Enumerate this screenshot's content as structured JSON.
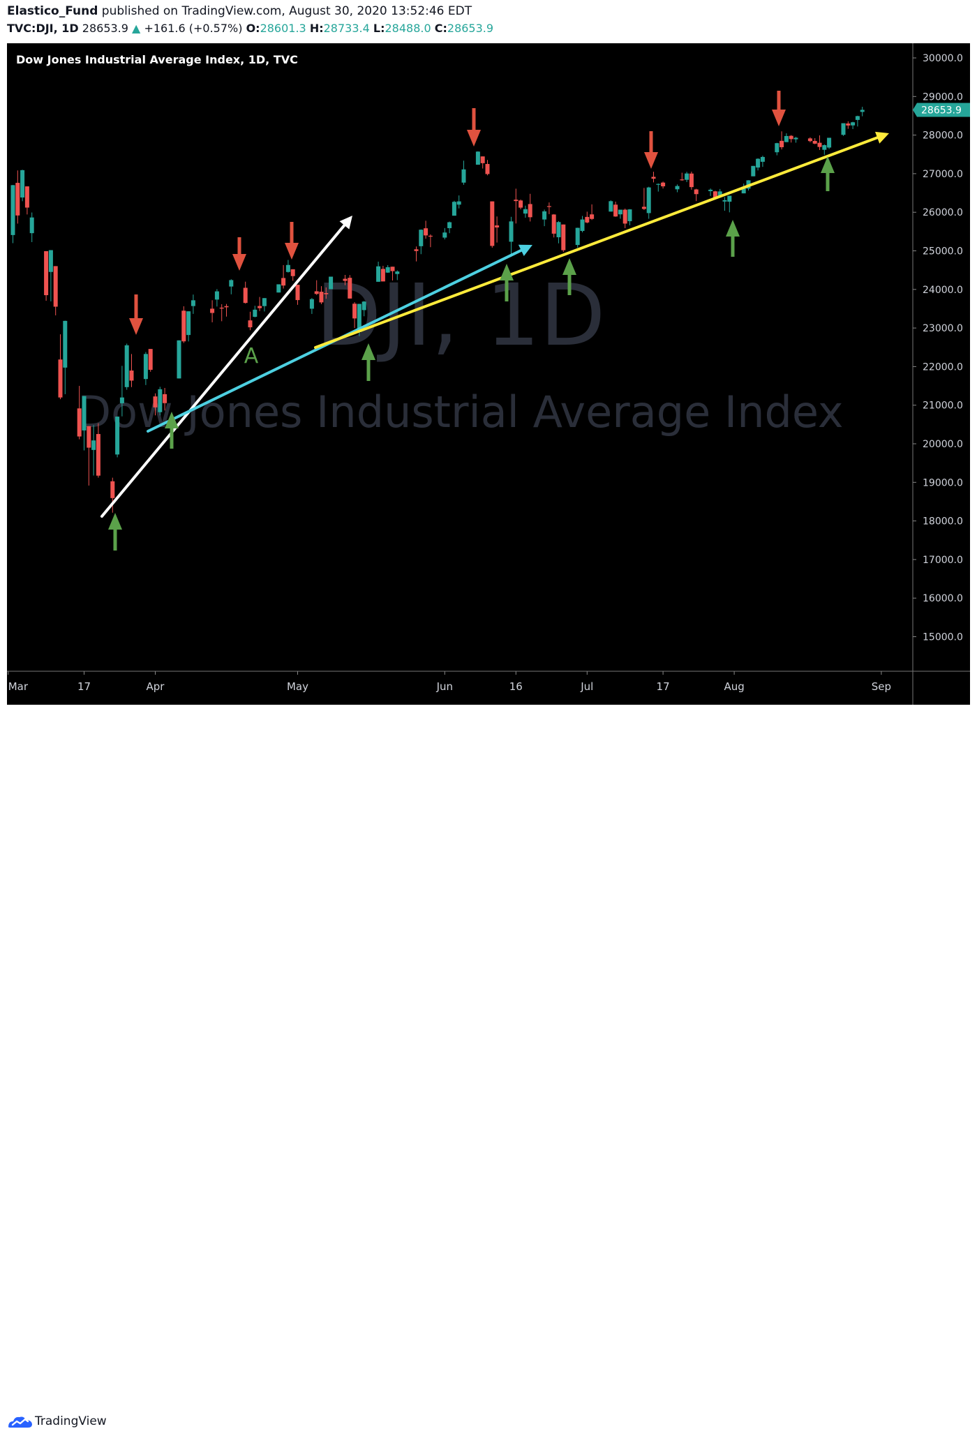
{
  "header": {
    "author": "Elastico_Fund",
    "published": "published on TradingView.com, August 30, 2020 13:52:46 EDT",
    "symbol": "TVC:DJI, 1D",
    "last": "28653.9",
    "change": "+161.6 (+0.57%)",
    "open_label": "O:",
    "open": "28601.3",
    "high_label": "H:",
    "high": "28733.4",
    "low_label": "L:",
    "low": "28488.0",
    "close_label": "C:",
    "close": "28653.9"
  },
  "chart_title": "Dow Jones Industrial Average Index, 1D, TVC",
  "watermark": {
    "line1": "DJI, 1D",
    "line2": "Dow Jones Industrial Average Index"
  },
  "footer": {
    "brand": "TradingView"
  },
  "annotation_label": "A",
  "colors": {
    "up": "#26a69a",
    "down": "#ef5350",
    "white_line": "#ffffff",
    "cyan_line": "#4dd0e1",
    "yellow_line": "#ffeb3b",
    "red_arrow": "#e0523f",
    "green_arrow": "#5ba14a",
    "price_tag": "#26a69a"
  },
  "chart_data": {
    "type": "candlestick",
    "ylim": [
      14300,
      30400
    ],
    "price_tag": "28653.9",
    "y_ticks": [
      "30000.0",
      "29000.0",
      "28000.0",
      "27000.0",
      "26000.0",
      "25000.0",
      "24000.0",
      "23000.0",
      "22000.0",
      "21000.0",
      "20000.0",
      "19000.0",
      "18000.0",
      "17000.0",
      "16000.0",
      "15000.0"
    ],
    "x_ticks": [
      "Mar",
      "17",
      "Apr",
      "May",
      "Jun",
      "16",
      "Jul",
      "17",
      "Aug",
      "Sep"
    ],
    "candles": [
      {
        "date": "2020-03-02",
        "o": 25409,
        "h": 26706,
        "l": 25200,
        "c": 26703
      },
      {
        "date": "2020-03-03",
        "o": 26762,
        "h": 27084,
        "l": 25706,
        "c": 25917
      },
      {
        "date": "2020-03-04",
        "o": 26383,
        "h": 27102,
        "l": 26286,
        "c": 27091
      },
      {
        "date": "2020-03-05",
        "o": 26671,
        "h": 26671,
        "l": 25943,
        "c": 26121
      },
      {
        "date": "2020-03-06",
        "o": 25458,
        "h": 25994,
        "l": 25226,
        "c": 25865
      },
      {
        "date": "2020-03-09",
        "o": 24992,
        "h": 24992,
        "l": 23706,
        "c": 23851
      },
      {
        "date": "2020-03-10",
        "o": 24453,
        "h": 25020,
        "l": 23690,
        "c": 25018
      },
      {
        "date": "2020-03-11",
        "o": 24604,
        "h": 24604,
        "l": 23328,
        "c": 23553
      },
      {
        "date": "2020-03-12",
        "o": 22184,
        "h": 22837,
        "l": 21154,
        "c": 21200
      },
      {
        "date": "2020-03-13",
        "o": 21974,
        "h": 23190,
        "l": 21285,
        "c": 23185
      },
      {
        "date": "2020-03-16",
        "o": 20917,
        "h": 21500,
        "l": 20116,
        "c": 20189
      },
      {
        "date": "2020-03-17",
        "o": 20345,
        "h": 21237,
        "l": 19829,
        "c": 21237
      },
      {
        "date": "2020-03-18",
        "o": 20458,
        "h": 20458,
        "l": 18917,
        "c": 19899
      },
      {
        "date": "2020-03-19",
        "o": 19840,
        "h": 20484,
        "l": 19177,
        "c": 20087
      },
      {
        "date": "2020-03-20",
        "o": 20253,
        "h": 20531,
        "l": 19122,
        "c": 19174
      },
      {
        "date": "2020-03-23",
        "o": 19028,
        "h": 19121,
        "l": 18214,
        "c": 18592
      },
      {
        "date": "2020-03-24",
        "o": 19722,
        "h": 20704,
        "l": 19649,
        "c": 20704
      },
      {
        "date": "2020-03-25",
        "o": 21050,
        "h": 22019,
        "l": 20710,
        "c": 21200
      },
      {
        "date": "2020-03-26",
        "o": 21468,
        "h": 22595,
        "l": 21400,
        "c": 22552
      },
      {
        "date": "2020-03-27",
        "o": 21898,
        "h": 22327,
        "l": 21469,
        "c": 21637
      },
      {
        "date": "2020-03-30",
        "o": 21678,
        "h": 22378,
        "l": 21522,
        "c": 22327
      },
      {
        "date": "2020-03-31",
        "o": 22457,
        "h": 22457,
        "l": 21866,
        "c": 21917
      },
      {
        "date": "2020-04-01",
        "o": 21227,
        "h": 21306,
        "l": 20736,
        "c": 20943
      },
      {
        "date": "2020-04-02",
        "o": 20819,
        "h": 21477,
        "l": 20735,
        "c": 21413
      },
      {
        "date": "2020-04-03",
        "o": 21285,
        "h": 21447,
        "l": 20863,
        "c": 21053
      },
      {
        "date": "2020-04-06",
        "o": 21693,
        "h": 22680,
        "l": 21693,
        "c": 22680
      },
      {
        "date": "2020-04-07",
        "o": 23449,
        "h": 23564,
        "l": 22612,
        "c": 22654
      },
      {
        "date": "2020-04-08",
        "o": 22819,
        "h": 23433,
        "l": 22652,
        "c": 23433
      },
      {
        "date": "2020-04-09",
        "o": 23569,
        "h": 23867,
        "l": 23366,
        "c": 23719
      },
      {
        "date": "2020-04-13",
        "o": 23501,
        "h": 23720,
        "l": 23148,
        "c": 23390
      },
      {
        "date": "2020-04-14",
        "o": 23737,
        "h": 24009,
        "l": 23557,
        "c": 23950
      },
      {
        "date": "2020-04-15",
        "o": 23528,
        "h": 23618,
        "l": 23176,
        "c": 23504
      },
      {
        "date": "2020-04-16",
        "o": 23567,
        "h": 23623,
        "l": 23296,
        "c": 23538
      },
      {
        "date": "2020-04-17",
        "o": 24075,
        "h": 24264,
        "l": 23873,
        "c": 24242
      },
      {
        "date": "2020-04-20",
        "o": 24042,
        "h": 24201,
        "l": 23633,
        "c": 23650
      },
      {
        "date": "2020-04-21",
        "o": 23198,
        "h": 23422,
        "l": 22942,
        "c": 23018
      },
      {
        "date": "2020-04-22",
        "o": 23291,
        "h": 23576,
        "l": 23277,
        "c": 23475
      },
      {
        "date": "2020-04-23",
        "o": 23570,
        "h": 23805,
        "l": 23440,
        "c": 23515
      },
      {
        "date": "2020-04-24",
        "o": 23568,
        "h": 23776,
        "l": 23429,
        "c": 23775
      },
      {
        "date": "2020-04-27",
        "o": 23920,
        "h": 24118,
        "l": 23920,
        "c": 24133
      },
      {
        "date": "2020-04-28",
        "o": 24296,
        "h": 24631,
        "l": 24023,
        "c": 24101
      },
      {
        "date": "2020-04-29",
        "o": 24452,
        "h": 24764,
        "l": 24436,
        "c": 24634
      },
      {
        "date": "2020-04-30",
        "o": 24523,
        "h": 24523,
        "l": 24224,
        "c": 24345
      },
      {
        "date": "2020-05-01",
        "o": 24120,
        "h": 24120,
        "l": 23600,
        "c": 23724
      },
      {
        "date": "2020-05-04",
        "o": 23500,
        "h": 23778,
        "l": 23365,
        "c": 23749
      },
      {
        "date": "2020-05-05",
        "o": 23952,
        "h": 24238,
        "l": 23857,
        "c": 23883
      },
      {
        "date": "2020-05-06",
        "o": 23940,
        "h": 24084,
        "l": 23620,
        "c": 23664
      },
      {
        "date": "2020-05-07",
        "o": 23906,
        "h": 24051,
        "l": 23759,
        "c": 23875
      },
      {
        "date": "2020-05-08",
        "o": 24006,
        "h": 24320,
        "l": 24006,
        "c": 24331
      },
      {
        "date": "2020-05-11",
        "o": 24276,
        "h": 24376,
        "l": 24110,
        "c": 24221
      },
      {
        "date": "2020-05-12",
        "o": 24301,
        "h": 24372,
        "l": 23764,
        "c": 23764
      },
      {
        "date": "2020-05-13",
        "o": 23630,
        "h": 23670,
        "l": 23000,
        "c": 23248
      },
      {
        "date": "2020-05-14",
        "o": 22896,
        "h": 23627,
        "l": 22789,
        "c": 23625
      },
      {
        "date": "2020-05-15",
        "o": 23464,
        "h": 23699,
        "l": 23305,
        "c": 23685
      },
      {
        "date": "2020-05-18",
        "o": 24198,
        "h": 24720,
        "l": 24198,
        "c": 24598
      },
      {
        "date": "2020-05-19",
        "o": 24532,
        "h": 24612,
        "l": 24210,
        "c": 24207
      },
      {
        "date": "2020-05-20",
        "o": 24436,
        "h": 24630,
        "l": 24429,
        "c": 24576
      },
      {
        "date": "2020-05-21",
        "o": 24589,
        "h": 24589,
        "l": 24232,
        "c": 24474
      },
      {
        "date": "2020-05-22",
        "o": 24400,
        "h": 24493,
        "l": 24241,
        "c": 24465
      },
      {
        "date": "2020-05-26",
        "o": 25040,
        "h": 25114,
        "l": 24727,
        "c": 24995
      },
      {
        "date": "2020-05-27",
        "o": 25120,
        "h": 25555,
        "l": 24914,
        "c": 25548
      },
      {
        "date": "2020-05-28",
        "o": 25585,
        "h": 25780,
        "l": 25315,
        "c": 25400
      },
      {
        "date": "2020-05-29",
        "o": 25391,
        "h": 25427,
        "l": 25095,
        "c": 25383
      },
      {
        "date": "2020-06-01",
        "o": 25343,
        "h": 25590,
        "l": 25296,
        "c": 25475
      },
      {
        "date": "2020-06-02",
        "o": 25588,
        "h": 25759,
        "l": 25457,
        "c": 25742
      },
      {
        "date": "2020-06-03",
        "o": 25911,
        "h": 26297,
        "l": 25911,
        "c": 26270
      },
      {
        "date": "2020-06-04",
        "o": 26197,
        "h": 26436,
        "l": 26100,
        "c": 26282
      },
      {
        "date": "2020-06-05",
        "o": 26768,
        "h": 27337,
        "l": 26711,
        "c": 27111
      },
      {
        "date": "2020-06-08",
        "o": 27232,
        "h": 27580,
        "l": 27232,
        "c": 27572
      },
      {
        "date": "2020-06-09",
        "o": 27447,
        "h": 27447,
        "l": 27134,
        "c": 27272
      },
      {
        "date": "2020-06-10",
        "o": 27251,
        "h": 27355,
        "l": 26957,
        "c": 26990
      },
      {
        "date": "2020-06-11",
        "o": 26282,
        "h": 26282,
        "l": 25082,
        "c": 25128
      },
      {
        "date": "2020-06-12",
        "o": 25659,
        "h": 25891,
        "l": 25215,
        "c": 25606
      },
      {
        "date": "2020-06-15",
        "o": 25236,
        "h": 25881,
        "l": 24843,
        "c": 25763
      },
      {
        "date": "2020-06-16",
        "o": 26326,
        "h": 26611,
        "l": 25709,
        "c": 26290
      },
      {
        "date": "2020-06-17",
        "o": 26305,
        "h": 26329,
        "l": 26076,
        "c": 26120
      },
      {
        "date": "2020-06-18",
        "o": 25966,
        "h": 26171,
        "l": 25859,
        "c": 26080
      },
      {
        "date": "2020-06-19",
        "o": 26213,
        "h": 26478,
        "l": 25761,
        "c": 25871
      },
      {
        "date": "2020-06-22",
        "o": 25812,
        "h": 26069,
        "l": 25640,
        "c": 26024
      },
      {
        "date": "2020-06-23",
        "o": 26159,
        "h": 26254,
        "l": 25951,
        "c": 26156
      },
      {
        "date": "2020-06-24",
        "o": 25942,
        "h": 25952,
        "l": 25347,
        "c": 25445
      },
      {
        "date": "2020-06-25",
        "o": 25352,
        "h": 25771,
        "l": 25194,
        "c": 25746
      },
      {
        "date": "2020-06-26",
        "o": 25683,
        "h": 25683,
        "l": 24970,
        "c": 25016
      },
      {
        "date": "2020-06-29",
        "o": 25152,
        "h": 25600,
        "l": 25084,
        "c": 25596
      },
      {
        "date": "2020-06-30",
        "o": 25516,
        "h": 25905,
        "l": 25479,
        "c": 25813
      },
      {
        "date": "2020-07-01",
        "o": 25879,
        "h": 26015,
        "l": 25714,
        "c": 25735
      },
      {
        "date": "2020-07-02",
        "o": 25945,
        "h": 26204,
        "l": 25800,
        "c": 25827
      },
      {
        "date": "2020-07-06",
        "o": 26017,
        "h": 26309,
        "l": 26017,
        "c": 26287
      },
      {
        "date": "2020-07-07",
        "o": 26197,
        "h": 26275,
        "l": 25882,
        "c": 25890
      },
      {
        "date": "2020-07-08",
        "o": 25946,
        "h": 26067,
        "l": 25833,
        "c": 26067
      },
      {
        "date": "2020-07-09",
        "o": 26066,
        "h": 26095,
        "l": 25589,
        "c": 25706
      },
      {
        "date": "2020-07-10",
        "o": 25768,
        "h": 26080,
        "l": 25663,
        "c": 26075
      },
      {
        "date": "2020-07-13",
        "o": 26142,
        "h": 26630,
        "l": 26059,
        "c": 26086
      },
      {
        "date": "2020-07-14",
        "o": 25978,
        "h": 26661,
        "l": 25831,
        "c": 26643
      },
      {
        "date": "2020-07-15",
        "o": 26918,
        "h": 27050,
        "l": 26775,
        "c": 26870
      },
      {
        "date": "2020-07-16",
        "o": 26732,
        "h": 26746,
        "l": 26536,
        "c": 26734
      },
      {
        "date": "2020-07-17",
        "o": 26769,
        "h": 26795,
        "l": 26615,
        "c": 26672
      },
      {
        "date": "2020-07-20",
        "o": 26595,
        "h": 26720,
        "l": 26519,
        "c": 26680
      },
      {
        "date": "2020-07-21",
        "o": 26851,
        "h": 27025,
        "l": 26816,
        "c": 26840
      },
      {
        "date": "2020-07-22",
        "o": 26841,
        "h": 27048,
        "l": 26782,
        "c": 27005
      },
      {
        "date": "2020-07-23",
        "o": 27003,
        "h": 27053,
        "l": 26585,
        "c": 26652
      },
      {
        "date": "2020-07-24",
        "o": 26592,
        "h": 26608,
        "l": 26289,
        "c": 26470
      },
      {
        "date": "2020-07-27",
        "o": 26547,
        "h": 26616,
        "l": 26422,
        "c": 26584
      },
      {
        "date": "2020-07-28",
        "o": 26542,
        "h": 26558,
        "l": 26375,
        "c": 26379
      },
      {
        "date": "2020-07-29",
        "o": 26417,
        "h": 26603,
        "l": 26389,
        "c": 26540
      },
      {
        "date": "2020-07-30",
        "o": 26278,
        "h": 26392,
        "l": 26039,
        "c": 26314
      },
      {
        "date": "2020-07-31",
        "o": 26274,
        "h": 26427,
        "l": 25998,
        "c": 26428
      },
      {
        "date": "2020-08-03",
        "o": 26490,
        "h": 26743,
        "l": 26490,
        "c": 26664
      },
      {
        "date": "2020-08-04",
        "o": 26614,
        "h": 26832,
        "l": 26564,
        "c": 26828
      },
      {
        "date": "2020-08-05",
        "o": 26932,
        "h": 27201,
        "l": 26932,
        "c": 27201
      },
      {
        "date": "2020-08-06",
        "o": 27159,
        "h": 27400,
        "l": 27084,
        "c": 27386
      },
      {
        "date": "2020-08-07",
        "o": 27308,
        "h": 27466,
        "l": 27176,
        "c": 27433
      },
      {
        "date": "2020-08-10",
        "o": 27555,
        "h": 27800,
        "l": 27476,
        "c": 27791
      },
      {
        "date": "2020-08-11",
        "o": 27851,
        "h": 28097,
        "l": 27629,
        "c": 27686
      },
      {
        "date": "2020-08-12",
        "o": 27818,
        "h": 28046,
        "l": 27818,
        "c": 27976
      },
      {
        "date": "2020-08-13",
        "o": 27981,
        "h": 28000,
        "l": 27807,
        "c": 27896
      },
      {
        "date": "2020-08-14",
        "o": 27891,
        "h": 27954,
        "l": 27803,
        "c": 27931
      },
      {
        "date": "2020-08-17",
        "o": 27914,
        "h": 27944,
        "l": 27813,
        "c": 27844
      },
      {
        "date": "2020-08-18",
        "o": 27849,
        "h": 27921,
        "l": 27764,
        "c": 27778
      },
      {
        "date": "2020-08-19",
        "o": 27801,
        "h": 27993,
        "l": 27613,
        "c": 27692
      },
      {
        "date": "2020-08-20",
        "o": 27619,
        "h": 27758,
        "l": 27489,
        "c": 27739
      },
      {
        "date": "2020-08-21",
        "o": 27677,
        "h": 27917,
        "l": 27642,
        "c": 27930
      },
      {
        "date": "2020-08-24",
        "o": 28006,
        "h": 28218,
        "l": 27980,
        "c": 28308
      },
      {
        "date": "2020-08-25",
        "o": 28301,
        "h": 28357,
        "l": 28163,
        "c": 28248
      },
      {
        "date": "2020-08-26",
        "o": 28251,
        "h": 28345,
        "l": 28156,
        "c": 28332
      },
      {
        "date": "2020-08-27",
        "o": 28393,
        "h": 28502,
        "l": 28223,
        "c": 28492
      },
      {
        "date": "2020-08-28",
        "o": 28601,
        "h": 28733,
        "l": 28488,
        "c": 28654
      }
    ]
  }
}
